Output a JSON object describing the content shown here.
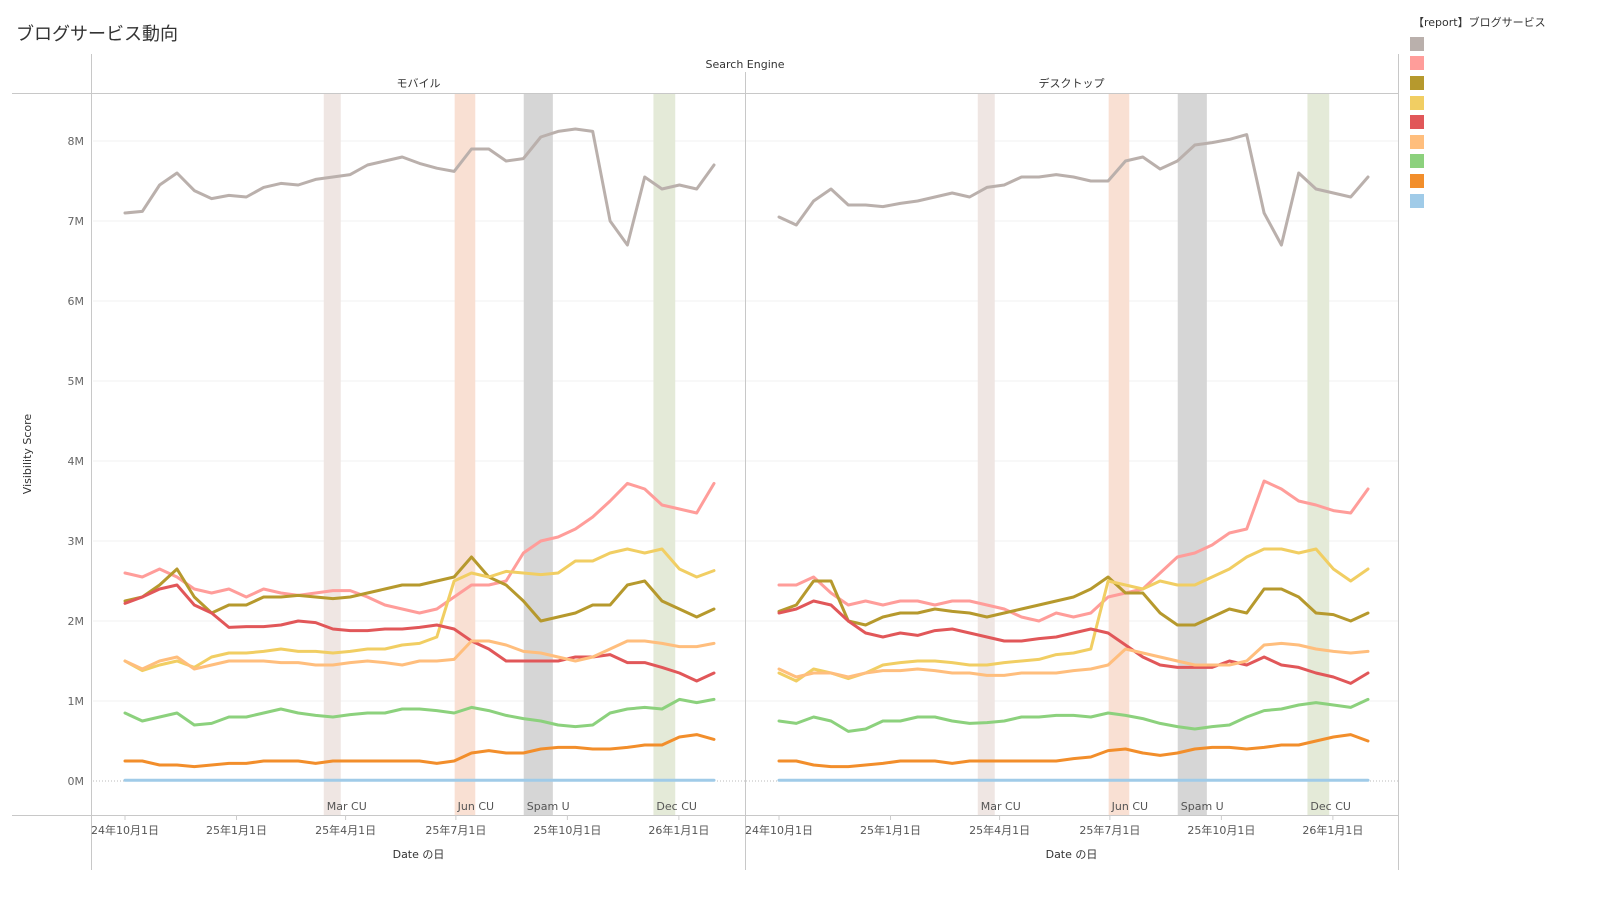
{
  "title": "ブログサービス動向",
  "legend": {
    "title": "【report】ブログサービス",
    "items": [
      {
        "label": "",
        "color": "#bab0ac"
      },
      {
        "label": "",
        "color": "#ff9d9a"
      },
      {
        "label": "",
        "color": "#b6992d"
      },
      {
        "label": "",
        "color": "#f1ce63"
      },
      {
        "label": "",
        "color": "#e15759"
      },
      {
        "label": "",
        "color": "#ffbe7d"
      },
      {
        "label": "",
        "color": "#8cd17d"
      },
      {
        "label": "",
        "color": "#f28e2b"
      },
      {
        "label": "",
        "color": "#a0cbe8"
      }
    ]
  },
  "chart_data": {
    "type": "line",
    "column_header": "Search Engine",
    "ylabel": "Visibility Score",
    "xlabel": "Date の日",
    "ylim": [
      0,
      8.5
    ],
    "y_ticks": [
      "0M",
      "1M",
      "2M",
      "3M",
      "4M",
      "5M",
      "6M",
      "7M",
      "8M"
    ],
    "x_ticks": [
      {
        "label": "24年10月1日",
        "date": "2024-10-01"
      },
      {
        "label": "25年1月1日",
        "date": "2025-01-01"
      },
      {
        "label": "25年4月1日",
        "date": "2025-04-01"
      },
      {
        "label": "25年7月1日",
        "date": "2025-07-01"
      },
      {
        "label": "25年10月1日",
        "date": "2025-10-01"
      },
      {
        "label": "26年1月1日",
        "date": "2026-01-01"
      }
    ],
    "start_date": "2024-10-01",
    "interval_days": 14,
    "value_unit": "M",
    "annotations": [
      {
        "label": "Mar CU",
        "start": "2025-03-14",
        "end": "2025-03-28",
        "color": "#efe6e3"
      },
      {
        "label": "Jun CU",
        "start": "2025-06-30",
        "end": "2025-07-17",
        "color": "#f9e0d3"
      },
      {
        "label": "Spam U",
        "start": "2025-08-26",
        "end": "2025-09-19",
        "color": "#d6d6d6"
      },
      {
        "label": "Dec CU",
        "start": "2025-12-11",
        "end": "2025-12-29",
        "color": "#e4ead8"
      }
    ],
    "panels": [
      {
        "name": "モバイル",
        "series": [
          {
            "color": "#bab0ac",
            "values": [
              7.1,
              7.12,
              7.45,
              7.6,
              7.38,
              7.28,
              7.32,
              7.3,
              7.42,
              7.47,
              7.45,
              7.52,
              7.55,
              7.58,
              7.7,
              7.75,
              7.8,
              7.72,
              7.66,
              7.62,
              7.9,
              7.9,
              7.75,
              7.78,
              8.05,
              8.12,
              8.15,
              8.12,
              7.0,
              6.7,
              7.55,
              7.4,
              7.45,
              7.4,
              7.7
            ]
          },
          {
            "color": "#ff9d9a",
            "values": [
              2.6,
              2.55,
              2.65,
              2.55,
              2.4,
              2.35,
              2.4,
              2.3,
              2.4,
              2.35,
              2.32,
              2.35,
              2.38,
              2.38,
              2.3,
              2.2,
              2.15,
              2.1,
              2.15,
              2.3,
              2.45,
              2.45,
              2.5,
              2.85,
              3.0,
              3.05,
              3.15,
              3.3,
              3.5,
              3.72,
              3.65,
              3.45,
              3.4,
              3.35,
              3.72
            ]
          },
          {
            "color": "#b6992d",
            "values": [
              2.25,
              2.3,
              2.45,
              2.65,
              2.3,
              2.1,
              2.2,
              2.2,
              2.3,
              2.3,
              2.32,
              2.3,
              2.28,
              2.3,
              2.35,
              2.4,
              2.45,
              2.45,
              2.5,
              2.55,
              2.8,
              2.55,
              2.45,
              2.25,
              2.0,
              2.05,
              2.1,
              2.2,
              2.2,
              2.45,
              2.5,
              2.25,
              2.15,
              2.05,
              2.15
            ]
          },
          {
            "color": "#f1ce63",
            "values": [
              1.5,
              1.38,
              1.45,
              1.5,
              1.42,
              1.55,
              1.6,
              1.6,
              1.62,
              1.65,
              1.62,
              1.62,
              1.6,
              1.62,
              1.65,
              1.65,
              1.7,
              1.72,
              1.8,
              2.5,
              2.6,
              2.55,
              2.62,
              2.6,
              2.58,
              2.6,
              2.75,
              2.75,
              2.85,
              2.9,
              2.85,
              2.9,
              2.65,
              2.55,
              2.63
            ]
          },
          {
            "color": "#e15759",
            "values": [
              2.22,
              2.3,
              2.4,
              2.45,
              2.2,
              2.1,
              1.92,
              1.93,
              1.93,
              1.95,
              2.0,
              1.98,
              1.9,
              1.88,
              1.88,
              1.9,
              1.9,
              1.92,
              1.95,
              1.9,
              1.75,
              1.65,
              1.5,
              1.5,
              1.5,
              1.5,
              1.55,
              1.55,
              1.58,
              1.48,
              1.48,
              1.42,
              1.35,
              1.25,
              1.35
            ]
          },
          {
            "color": "#ffbe7d",
            "values": [
              1.5,
              1.4,
              1.5,
              1.55,
              1.4,
              1.45,
              1.5,
              1.5,
              1.5,
              1.48,
              1.48,
              1.45,
              1.45,
              1.48,
              1.5,
              1.48,
              1.45,
              1.5,
              1.5,
              1.52,
              1.75,
              1.75,
              1.7,
              1.62,
              1.6,
              1.55,
              1.5,
              1.55,
              1.65,
              1.75,
              1.75,
              1.72,
              1.68,
              1.68,
              1.72
            ]
          },
          {
            "color": "#8cd17d",
            "values": [
              0.85,
              0.75,
              0.8,
              0.85,
              0.7,
              0.72,
              0.8,
              0.8,
              0.85,
              0.9,
              0.85,
              0.82,
              0.8,
              0.83,
              0.85,
              0.85,
              0.9,
              0.9,
              0.88,
              0.85,
              0.92,
              0.88,
              0.82,
              0.78,
              0.75,
              0.7,
              0.68,
              0.7,
              0.85,
              0.9,
              0.92,
              0.9,
              1.02,
              0.98,
              1.02
            ]
          },
          {
            "color": "#f28e2b",
            "values": [
              0.25,
              0.25,
              0.2,
              0.2,
              0.18,
              0.2,
              0.22,
              0.22,
              0.25,
              0.25,
              0.25,
              0.22,
              0.25,
              0.25,
              0.25,
              0.25,
              0.25,
              0.25,
              0.22,
              0.25,
              0.35,
              0.38,
              0.35,
              0.35,
              0.4,
              0.42,
              0.42,
              0.4,
              0.4,
              0.42,
              0.45,
              0.45,
              0.55,
              0.58,
              0.52
            ]
          },
          {
            "color": "#a0cbe8",
            "values": [
              0.01,
              0.01,
              0.01,
              0.01,
              0.01,
              0.01,
              0.01,
              0.01,
              0.01,
              0.01,
              0.01,
              0.01,
              0.01,
              0.01,
              0.01,
              0.01,
              0.01,
              0.01,
              0.01,
              0.01,
              0.01,
              0.01,
              0.01,
              0.01,
              0.01,
              0.01,
              0.01,
              0.01,
              0.01,
              0.01,
              0.01,
              0.01,
              0.01,
              0.01,
              0.01
            ]
          }
        ]
      },
      {
        "name": "デスクトップ",
        "series": [
          {
            "color": "#bab0ac",
            "values": [
              7.05,
              6.95,
              7.25,
              7.4,
              7.2,
              7.2,
              7.18,
              7.22,
              7.25,
              7.3,
              7.35,
              7.3,
              7.42,
              7.45,
              7.55,
              7.55,
              7.58,
              7.55,
              7.5,
              7.5,
              7.75,
              7.8,
              7.65,
              7.75,
              7.95,
              7.98,
              8.02,
              8.08,
              7.1,
              6.7,
              7.6,
              7.4,
              7.35,
              7.3,
              7.55
            ]
          },
          {
            "color": "#ff9d9a",
            "values": [
              2.45,
              2.45,
              2.55,
              2.35,
              2.2,
              2.25,
              2.2,
              2.25,
              2.25,
              2.2,
              2.25,
              2.25,
              2.2,
              2.15,
              2.05,
              2.0,
              2.1,
              2.05,
              2.1,
              2.3,
              2.35,
              2.4,
              2.6,
              2.8,
              2.85,
              2.95,
              3.1,
              3.15,
              3.75,
              3.65,
              3.5,
              3.45,
              3.38,
              3.35,
              3.65
            ]
          },
          {
            "color": "#b6992d",
            "values": [
              2.12,
              2.2,
              2.5,
              2.5,
              2.0,
              1.95,
              2.05,
              2.1,
              2.1,
              2.15,
              2.12,
              2.1,
              2.05,
              2.1,
              2.15,
              2.2,
              2.25,
              2.3,
              2.4,
              2.55,
              2.35,
              2.35,
              2.1,
              1.95,
              1.95,
              2.05,
              2.15,
              2.1,
              2.4,
              2.4,
              2.3,
              2.1,
              2.08,
              2.0,
              2.1
            ]
          },
          {
            "color": "#f1ce63",
            "values": [
              1.35,
              1.25,
              1.4,
              1.35,
              1.28,
              1.35,
              1.45,
              1.48,
              1.5,
              1.5,
              1.48,
              1.45,
              1.45,
              1.48,
              1.5,
              1.52,
              1.58,
              1.6,
              1.65,
              2.5,
              2.45,
              2.4,
              2.5,
              2.45,
              2.45,
              2.55,
              2.65,
              2.8,
              2.9,
              2.9,
              2.85,
              2.9,
              2.65,
              2.5,
              2.65
            ]
          },
          {
            "color": "#e15759",
            "values": [
              2.1,
              2.15,
              2.25,
              2.2,
              2.0,
              1.85,
              1.8,
              1.85,
              1.82,
              1.88,
              1.9,
              1.85,
              1.8,
              1.75,
              1.75,
              1.78,
              1.8,
              1.85,
              1.9,
              1.85,
              1.7,
              1.55,
              1.45,
              1.42,
              1.42,
              1.42,
              1.5,
              1.45,
              1.55,
              1.45,
              1.42,
              1.35,
              1.3,
              1.22,
              1.35
            ]
          },
          {
            "color": "#ffbe7d",
            "values": [
              1.4,
              1.3,
              1.35,
              1.35,
              1.3,
              1.35,
              1.38,
              1.38,
              1.4,
              1.38,
              1.35,
              1.35,
              1.32,
              1.32,
              1.35,
              1.35,
              1.35,
              1.38,
              1.4,
              1.45,
              1.65,
              1.6,
              1.55,
              1.5,
              1.45,
              1.45,
              1.45,
              1.5,
              1.7,
              1.72,
              1.7,
              1.65,
              1.62,
              1.6,
              1.62
            ]
          },
          {
            "color": "#8cd17d",
            "values": [
              0.75,
              0.72,
              0.8,
              0.75,
              0.62,
              0.65,
              0.75,
              0.75,
              0.8,
              0.8,
              0.75,
              0.72,
              0.73,
              0.75,
              0.8,
              0.8,
              0.82,
              0.82,
              0.8,
              0.85,
              0.82,
              0.78,
              0.72,
              0.68,
              0.65,
              0.68,
              0.7,
              0.8,
              0.88,
              0.9,
              0.95,
              0.98,
              0.95,
              0.92,
              1.02
            ]
          },
          {
            "color": "#f28e2b",
            "values": [
              0.25,
              0.25,
              0.2,
              0.18,
              0.18,
              0.2,
              0.22,
              0.25,
              0.25,
              0.25,
              0.22,
              0.25,
              0.25,
              0.25,
              0.25,
              0.25,
              0.25,
              0.28,
              0.3,
              0.38,
              0.4,
              0.35,
              0.32,
              0.35,
              0.4,
              0.42,
              0.42,
              0.4,
              0.42,
              0.45,
              0.45,
              0.5,
              0.55,
              0.58,
              0.5
            ]
          },
          {
            "color": "#a0cbe8",
            "values": [
              0.01,
              0.01,
              0.01,
              0.01,
              0.01,
              0.01,
              0.01,
              0.01,
              0.01,
              0.01,
              0.01,
              0.01,
              0.01,
              0.01,
              0.01,
              0.01,
              0.01,
              0.01,
              0.01,
              0.01,
              0.01,
              0.01,
              0.01,
              0.01,
              0.01,
              0.01,
              0.01,
              0.01,
              0.01,
              0.01,
              0.01,
              0.01,
              0.01,
              0.01,
              0.01
            ]
          }
        ]
      }
    ]
  }
}
